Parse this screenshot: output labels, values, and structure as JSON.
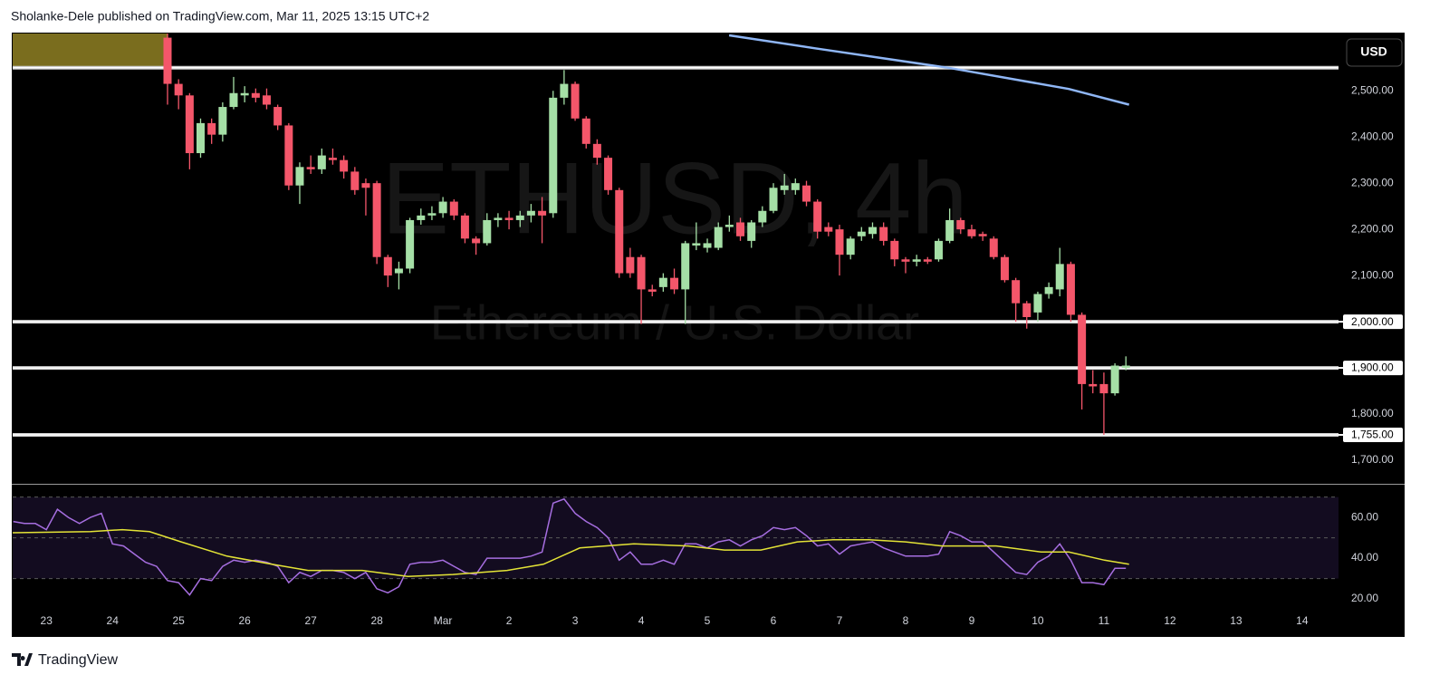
{
  "header": {
    "text": "Sholanke-Dele published on TradingView.com, Mar 11, 2025 13:15 UTC+2"
  },
  "footer": {
    "brand": "TradingView"
  },
  "chart_data": [
    {
      "type": "candlestick",
      "title": "ETHUSD, 4h",
      "subtitle": "Ethereum / U.S. Dollar",
      "currency": "USD",
      "up_color": "#a5dfa6",
      "down_color": "#f4566a",
      "xlim": [
        22.49,
        42.55
      ],
      "ylim": [
        1651,
        2624
      ],
      "yticks": [
        {
          "value": 1700,
          "label": "1,700.00"
        },
        {
          "value": 1800,
          "label": "1,800.00"
        },
        {
          "value": 1900,
          "label": "1,900.00"
        },
        {
          "value": 2000,
          "label": "2,000.00"
        },
        {
          "value": 2100,
          "label": "2,100.00"
        },
        {
          "value": 2200,
          "label": "2,200.00"
        },
        {
          "value": 2300,
          "label": "2,300.00"
        },
        {
          "value": 2400,
          "label": "2,400.00"
        },
        {
          "value": 2500,
          "label": "2,500.00"
        }
      ],
      "hlines": [
        2550,
        {
          "value": 2000,
          "label": "2,000.00"
        },
        {
          "value": 1900,
          "label": "1,900.00"
        },
        {
          "value": 1755,
          "label": "1,755.00"
        }
      ],
      "x": [
        24.833,
        25,
        25.167,
        25.333,
        25.5,
        25.667,
        25.833,
        26,
        26.167,
        26.333,
        26.5,
        26.667,
        26.833,
        27,
        27.167,
        27.333,
        27.5,
        27.667,
        27.833,
        28,
        28.167,
        28.333,
        28.5,
        28.667,
        28.833,
        29,
        29.167,
        29.333,
        29.5,
        29.667,
        29.833,
        30,
        30.167,
        30.333,
        30.5,
        30.667,
        30.833,
        31,
        31.167,
        31.333,
        31.5,
        31.667,
        31.833,
        32,
        32.167,
        32.333,
        32.5,
        32.667,
        32.833,
        33,
        33.167,
        33.333,
        33.5,
        33.667,
        33.833,
        34,
        34.167,
        34.333,
        34.5,
        34.667,
        34.833,
        35,
        35.167,
        35.333,
        35.5,
        35.667,
        35.833,
        36,
        36.167,
        36.333,
        36.5,
        36.667,
        36.833,
        37,
        37.167,
        37.333,
        37.5,
        37.667,
        37.833,
        38,
        38.167,
        38.333,
        38.5,
        38.667,
        38.833,
        39,
        39.167,
        39.333
      ],
      "open": [
        2615,
        2515,
        2490,
        2365,
        2430,
        2405,
        2465,
        2490,
        2495,
        2490,
        2465,
        2425,
        2295,
        2335,
        2330,
        2355,
        2350,
        2325,
        2300,
        2300,
        2140,
        2105,
        2115,
        2220,
        2230,
        2235,
        2260,
        2230,
        2180,
        2170,
        2220,
        2225,
        2220,
        2230,
        2240,
        2235,
        2485,
        2515,
        2440,
        2385,
        2355,
        2285,
        2140,
        2140,
        2070,
        2075,
        2095,
        2070,
        2165,
        2160,
        2160,
        2205,
        2215,
        2175,
        2215,
        2240,
        2285,
        2285,
        2295,
        2260,
        2205,
        2200,
        2145,
        2185,
        2190,
        2205,
        2175,
        2135,
        2130,
        2135,
        2135,
        2175,
        2220,
        2200,
        2190,
        2180,
        2140,
        2090,
        2040,
        2020,
        2060,
        2070,
        2125,
        2015,
        1865,
        1865,
        1845,
        1900
      ],
      "high": [
        2640,
        2525,
        2495,
        2440,
        2440,
        2475,
        2530,
        2510,
        2505,
        2505,
        2470,
        2430,
        2345,
        2360,
        2375,
        2375,
        2360,
        2335,
        2310,
        2305,
        2145,
        2130,
        2225,
        2245,
        2250,
        2270,
        2265,
        2235,
        2185,
        2235,
        2235,
        2240,
        2240,
        2255,
        2270,
        2500,
        2545,
        2520,
        2445,
        2395,
        2360,
        2290,
        2160,
        2145,
        2080,
        2105,
        2115,
        2175,
        2215,
        2180,
        2215,
        2230,
        2225,
        2220,
        2250,
        2300,
        2320,
        2310,
        2305,
        2265,
        2215,
        2210,
        2185,
        2205,
        2215,
        2215,
        2180,
        2140,
        2145,
        2140,
        2180,
        2245,
        2225,
        2210,
        2195,
        2185,
        2145,
        2095,
        2045,
        2065,
        2085,
        2160,
        2130,
        2020,
        1895,
        1890,
        1910,
        1925
      ],
      "low": [
        2470,
        2460,
        2330,
        2355,
        2385,
        2390,
        2460,
        2475,
        2475,
        2460,
        2415,
        2285,
        2255,
        2320,
        2320,
        2340,
        2310,
        2275,
        2230,
        2125,
        2075,
        2070,
        2105,
        2210,
        2220,
        2225,
        2220,
        2170,
        2145,
        2165,
        2205,
        2200,
        2205,
        2215,
        2170,
        2225,
        2470,
        2435,
        2375,
        2340,
        2275,
        2095,
        2095,
        1995,
        2055,
        2065,
        2060,
        1995,
        2155,
        2150,
        2155,
        2195,
        2175,
        2160,
        2205,
        2235,
        2275,
        2275,
        2250,
        2180,
        2185,
        2100,
        2135,
        2175,
        2180,
        2165,
        2120,
        2105,
        2120,
        2125,
        2130,
        2170,
        2190,
        2180,
        2175,
        2135,
        2085,
        2000,
        1985,
        2000,
        2050,
        2055,
        2000,
        1810,
        1845,
        1755,
        1840,
        1895
      ],
      "close": [
        2515,
        2490,
        2365,
        2430,
        2405,
        2465,
        2495,
        2495,
        2485,
        2470,
        2425,
        2295,
        2335,
        2330,
        2360,
        2350,
        2325,
        2285,
        2290,
        2140,
        2100,
        2115,
        2220,
        2230,
        2235,
        2260,
        2230,
        2180,
        2170,
        2220,
        2225,
        2220,
        2230,
        2240,
        2230,
        2485,
        2515,
        2440,
        2385,
        2355,
        2285,
        2105,
        2105,
        2070,
        2065,
        2095,
        2070,
        2170,
        2170,
        2170,
        2205,
        2210,
        2185,
        2215,
        2240,
        2290,
        2295,
        2300,
        2260,
        2195,
        2195,
        2145,
        2180,
        2195,
        2205,
        2175,
        2135,
        2130,
        2135,
        2130,
        2175,
        2220,
        2200,
        2185,
        2185,
        2140,
        2090,
        2040,
        2010,
        2060,
        2075,
        2125,
        2015,
        1865,
        1860,
        1845,
        1905,
        1905
      ],
      "ma": {
        "color": "#8fb6f5",
        "x": [
          33.33,
          34.63,
          36.68,
          38.47,
          39.38
        ],
        "values": [
          2620,
          2592,
          2549,
          2504,
          2470
        ]
      }
    },
    {
      "type": "line",
      "xlim": [
        22.49,
        42.55
      ],
      "xticks": [
        23,
        24,
        25,
        26,
        27,
        28,
        {
          "value": 29,
          "label": "Mar"
        },
        {
          "value": 30,
          "label": "2"
        },
        {
          "value": 31,
          "label": "3"
        },
        {
          "value": 32,
          "label": "4"
        },
        {
          "value": 33,
          "label": "5"
        },
        {
          "value": 34,
          "label": "6"
        },
        {
          "value": 35,
          "label": "7"
        },
        {
          "value": 36,
          "label": "8"
        },
        {
          "value": 37,
          "label": "9"
        },
        {
          "value": 38,
          "label": "10"
        },
        {
          "value": 39,
          "label": "11"
        },
        {
          "value": 40,
          "label": "12"
        },
        {
          "value": 41,
          "label": "13"
        },
        {
          "value": 42,
          "label": "14"
        }
      ],
      "ylim": [
        1.8,
        75.6
      ],
      "yticks": [
        {
          "value": 20,
          "label": "20.00"
        },
        {
          "value": 40,
          "label": "40.00"
        },
        {
          "value": 60,
          "label": "60.00"
        }
      ],
      "bands": [
        30,
        50,
        70
      ],
      "band_fill": "#130c20",
      "x": [
        22.5,
        22.667,
        22.833,
        23,
        23.167,
        23.333,
        23.5,
        23.667,
        23.833,
        24,
        24.167,
        24.333,
        24.5,
        24.667,
        24.833,
        25,
        25.167,
        25.333,
        25.5,
        25.667,
        25.833,
        26,
        26.167,
        26.333,
        26.5,
        26.667,
        26.833,
        27,
        27.167,
        27.333,
        27.5,
        27.667,
        27.833,
        28,
        28.167,
        28.333,
        28.5,
        28.667,
        28.833,
        29,
        29.167,
        29.333,
        29.5,
        29.667,
        29.833,
        30,
        30.167,
        30.333,
        30.5,
        30.667,
        30.833,
        31,
        31.167,
        31.333,
        31.5,
        31.667,
        31.833,
        32,
        32.167,
        32.333,
        32.5,
        32.667,
        32.833,
        33,
        33.167,
        33.333,
        33.5,
        33.667,
        33.833,
        34,
        34.167,
        34.333,
        34.5,
        34.667,
        34.833,
        35,
        35.167,
        35.333,
        35.5,
        35.667,
        35.833,
        36,
        36.167,
        36.333,
        36.5,
        36.667,
        36.833,
        37,
        37.167,
        37.333,
        37.5,
        37.667,
        37.833,
        38,
        38.167,
        38.333,
        38.5,
        38.667,
        38.833,
        39,
        39.167,
        39.333
      ],
      "series": [
        {
          "color": "#a66ee0",
          "values": [
            58,
            57,
            57,
            54,
            64,
            60,
            57,
            60,
            62,
            47,
            46,
            42,
            38,
            36,
            29,
            28,
            22,
            30,
            29,
            36,
            39,
            38,
            39,
            38,
            36,
            28,
            33,
            31,
            34,
            34,
            33,
            30,
            33,
            25,
            23,
            26,
            37,
            38,
            38,
            39,
            36,
            33,
            32,
            40,
            40,
            40,
            40,
            41,
            43,
            67,
            69,
            62,
            58,
            55,
            50,
            39,
            43,
            37,
            37,
            39,
            37,
            47,
            47,
            45,
            48,
            49,
            46,
            49,
            51,
            55,
            54,
            55,
            51,
            46,
            47,
            42,
            46,
            47,
            48,
            45,
            43,
            41,
            41,
            41,
            42,
            53,
            51,
            48,
            48,
            43,
            38,
            33,
            32,
            38,
            41,
            47,
            39,
            28,
            28,
            27,
            35,
            35
          ]
        },
        {
          "color": "#e3e336",
          "x": [
            22.49,
            23.67,
            24.15,
            24.56,
            25.04,
            25.73,
            26.41,
            26.96,
            27.78,
            28.47,
            29.15,
            29.97,
            30.52,
            31.07,
            31.89,
            32.71,
            33.26,
            33.81,
            34.36,
            34.9,
            35.45,
            36.0,
            36.55,
            37.37,
            38.05,
            38.47,
            39.01,
            39.38
          ],
          "values": [
            52.5,
            53,
            54,
            53,
            48,
            41,
            37,
            34,
            34,
            31,
            32,
            34,
            37,
            45,
            47,
            46,
            44,
            44,
            48,
            49,
            49,
            48,
            46,
            46,
            43,
            43,
            39,
            37
          ]
        }
      ]
    }
  ]
}
